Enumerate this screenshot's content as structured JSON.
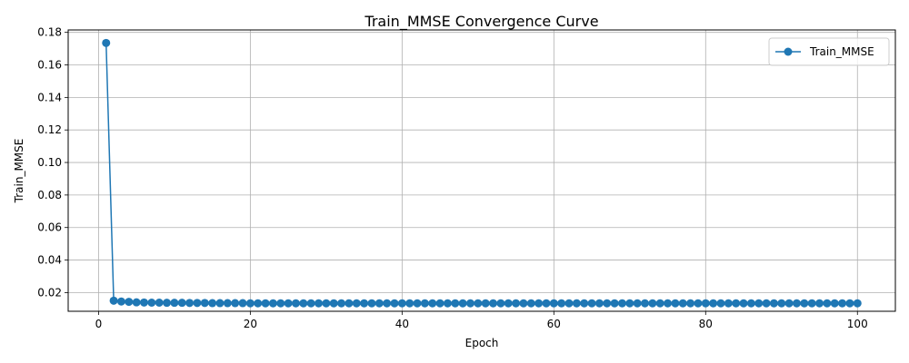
{
  "chart_data": {
    "type": "line",
    "title": "Train_MMSE Convergence Curve",
    "xlabel": "Epoch",
    "ylabel": "Train_MMSE",
    "xlim": [
      -4,
      105
    ],
    "ylim": [
      0.0085,
      0.1815
    ],
    "xticks": [
      0,
      20,
      40,
      60,
      80,
      100
    ],
    "xtick_labels": [
      "0",
      "20",
      "40",
      "60",
      "80",
      "100"
    ],
    "yticks": [
      0.02,
      0.04,
      0.06,
      0.08,
      0.1,
      0.12,
      0.14,
      0.16,
      0.18
    ],
    "ytick_labels": [
      "0.02",
      "0.04",
      "0.06",
      "0.08",
      "0.10",
      "0.12",
      "0.14",
      "0.16",
      "0.18"
    ],
    "grid": true,
    "legend_position": "top-right",
    "color": "#1f77b4",
    "series": [
      {
        "name": "Train_MMSE",
        "marker": "circle",
        "x": [
          1,
          2,
          3,
          4,
          5,
          6,
          7,
          8,
          9,
          10,
          11,
          12,
          13,
          14,
          15,
          16,
          17,
          18,
          19,
          20,
          21,
          22,
          23,
          24,
          25,
          26,
          27,
          28,
          29,
          30,
          31,
          32,
          33,
          34,
          35,
          36,
          37,
          38,
          39,
          40,
          41,
          42,
          43,
          44,
          45,
          46,
          47,
          48,
          49,
          50,
          51,
          52,
          53,
          54,
          55,
          56,
          57,
          58,
          59,
          60,
          61,
          62,
          63,
          64,
          65,
          66,
          67,
          68,
          69,
          70,
          71,
          72,
          73,
          74,
          75,
          76,
          77,
          78,
          79,
          80,
          81,
          82,
          83,
          84,
          85,
          86,
          87,
          88,
          89,
          90,
          91,
          92,
          93,
          94,
          95,
          96,
          97,
          98,
          99,
          100
        ],
        "values": [
          0.1735,
          0.015,
          0.0145,
          0.0143,
          0.014,
          0.0139,
          0.0138,
          0.0138,
          0.0137,
          0.0137,
          0.0137,
          0.0136,
          0.0136,
          0.0136,
          0.0135,
          0.0135,
          0.0135,
          0.0135,
          0.0135,
          0.0134,
          0.0134,
          0.0134,
          0.0134,
          0.0134,
          0.0134,
          0.0134,
          0.0134,
          0.0134,
          0.0134,
          0.0134,
          0.0134,
          0.0134,
          0.0134,
          0.0134,
          0.0134,
          0.0134,
          0.0134,
          0.0134,
          0.0134,
          0.0134,
          0.0134,
          0.0134,
          0.0134,
          0.0134,
          0.0134,
          0.0134,
          0.0134,
          0.0134,
          0.0134,
          0.0134,
          0.0134,
          0.0134,
          0.0134,
          0.0134,
          0.0134,
          0.0134,
          0.0134,
          0.0134,
          0.0134,
          0.0134,
          0.0134,
          0.0134,
          0.0134,
          0.0134,
          0.0134,
          0.0134,
          0.0134,
          0.0134,
          0.0134,
          0.0134,
          0.0134,
          0.0134,
          0.0134,
          0.0134,
          0.0134,
          0.0134,
          0.0134,
          0.0134,
          0.0134,
          0.0134,
          0.0134,
          0.0134,
          0.0134,
          0.0134,
          0.0134,
          0.0134,
          0.0134,
          0.0134,
          0.0134,
          0.0134,
          0.0134,
          0.0134,
          0.0134,
          0.0134,
          0.0134,
          0.0134,
          0.0134,
          0.0134,
          0.0134,
          0.0134
        ]
      }
    ]
  }
}
